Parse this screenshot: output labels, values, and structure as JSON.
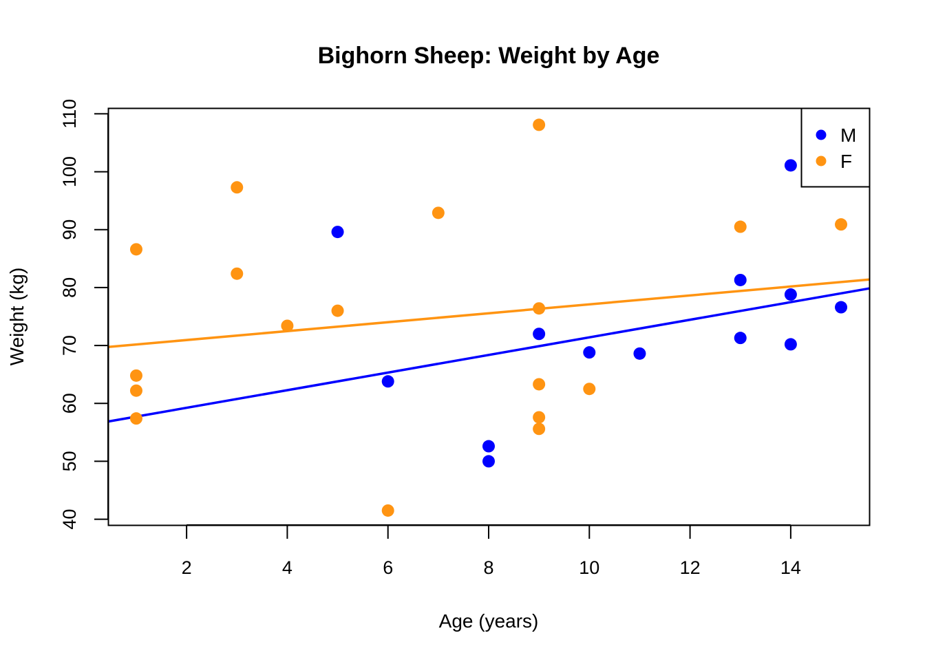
{
  "chart_data": {
    "type": "scatter",
    "title": "Bighorn Sheep: Weight by Age",
    "xlabel": "Age (years)",
    "ylabel": "Weight (kg)",
    "xlim": [
      0.44,
      15.56
    ],
    "ylim": [
      39,
      111
    ],
    "x_ticks": [
      2,
      4,
      6,
      8,
      10,
      12,
      14
    ],
    "y_ticks": [
      40,
      50,
      60,
      70,
      80,
      90,
      100,
      110
    ],
    "grid": false,
    "legend_position": "top-right",
    "series": [
      {
        "name": "M",
        "color": "#0000ff",
        "x": [
          5,
          6,
          8,
          8,
          9,
          10,
          11,
          13,
          13,
          14,
          14,
          14,
          15
        ],
        "y": [
          89.6,
          63.8,
          52.6,
          50.0,
          72.0,
          68.8,
          68.6,
          81.3,
          71.3,
          101.1,
          78.8,
          70.2,
          76.6
        ],
        "fit": {
          "intercept": 56.2,
          "slope": 1.52
        }
      },
      {
        "name": "F",
        "color": "#ff9412",
        "x": [
          1,
          1,
          1,
          1,
          3,
          3,
          4,
          5,
          6,
          7,
          9,
          9,
          9,
          9,
          9,
          10,
          13,
          15
        ],
        "y": [
          86.6,
          64.8,
          62.2,
          57.4,
          97.3,
          82.4,
          73.4,
          76.0,
          41.5,
          92.9,
          108.1,
          76.4,
          63.3,
          57.6,
          55.6,
          62.5,
          90.5,
          90.9
        ],
        "fit": {
          "intercept": 69.4,
          "slope": 0.77
        }
      }
    ]
  }
}
